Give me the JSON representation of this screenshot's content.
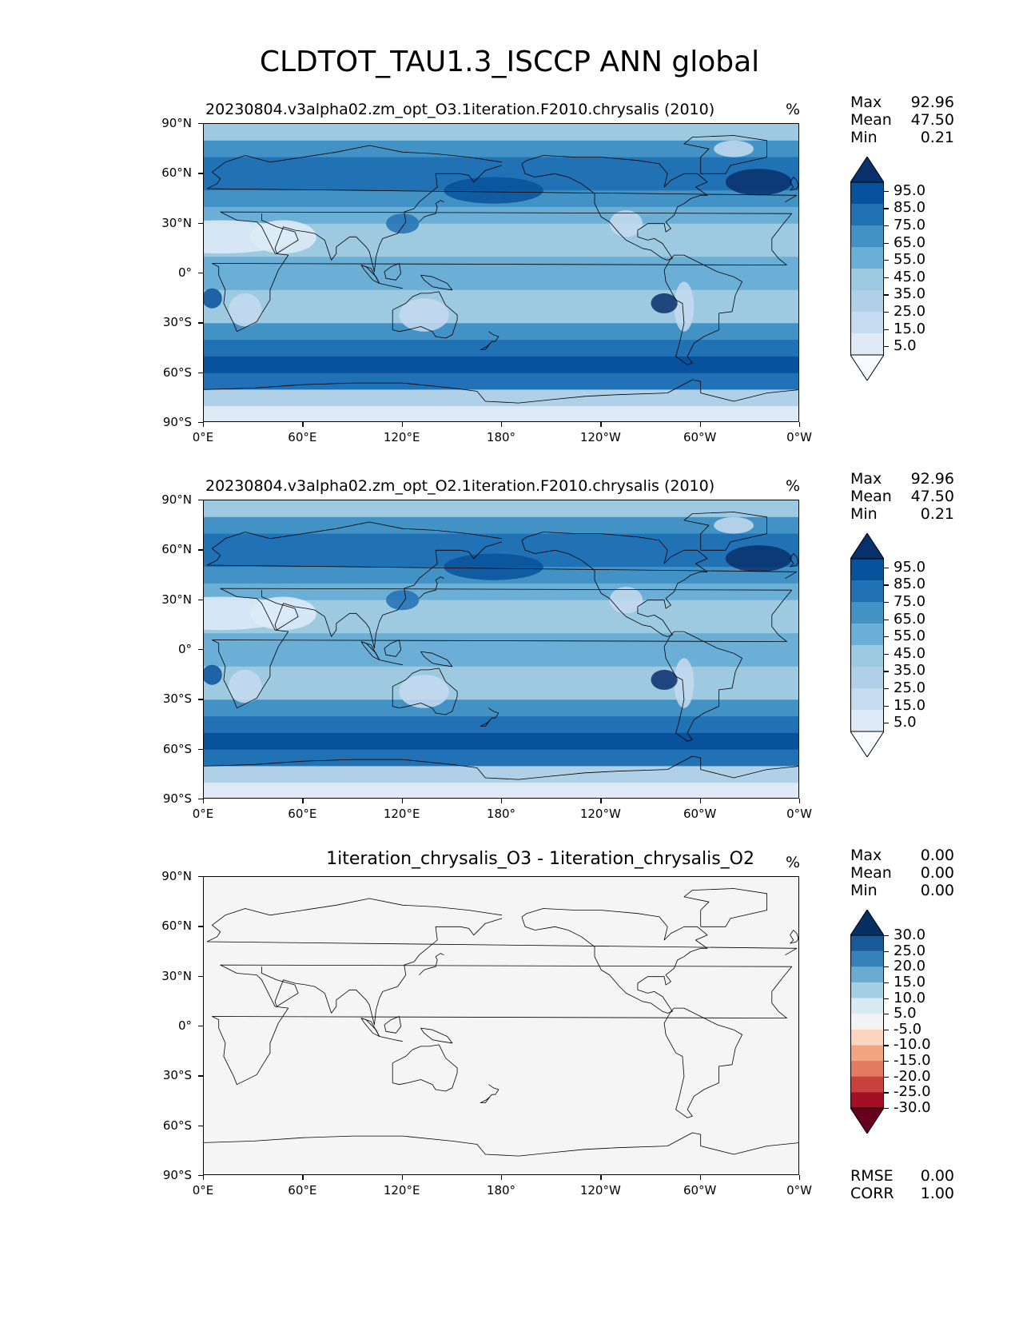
{
  "figure_title": "CLDTOT_TAU1.3_ISCCP ANN global",
  "units": "%",
  "axes": {
    "y_ticks": [
      "90°N",
      "60°N",
      "30°N",
      "0°",
      "30°S",
      "60°S",
      "90°S"
    ],
    "x_ticks": [
      "0°E",
      "60°E",
      "120°E",
      "180°",
      "120°W",
      "60°W",
      "0°W"
    ]
  },
  "panels": [
    {
      "title": "20230804.v3alpha02.zm_opt_O3.1iteration.F2010.chrysalis (2010)",
      "unit": "%",
      "stats": {
        "max_label": "Max",
        "max": "92.96",
        "mean_label": "Mean",
        "mean": "47.50",
        "min_label": "Min",
        "min": "0.21"
      },
      "colorbar": {
        "labels": [
          "95.0",
          "85.0",
          "75.0",
          "65.0",
          "55.0",
          "45.0",
          "35.0",
          "25.0",
          "15.0",
          "5.0"
        ]
      }
    },
    {
      "title": "20230804.v3alpha02.zm_opt_O2.1iteration.F2010.chrysalis (2010)",
      "unit": "%",
      "stats": {
        "max_label": "Max",
        "max": "92.96",
        "mean_label": "Mean",
        "mean": "47.50",
        "min_label": "Min",
        "min": "0.21"
      },
      "colorbar": {
        "labels": [
          "95.0",
          "85.0",
          "75.0",
          "65.0",
          "55.0",
          "45.0",
          "35.0",
          "25.0",
          "15.0",
          "5.0"
        ]
      }
    },
    {
      "title": "1iteration_chrysalis_O3 - 1iteration_chrysalis_O2",
      "unit": "%",
      "stats": {
        "max_label": "Max",
        "max": "0.00",
        "mean_label": "Mean",
        "mean": "0.00",
        "min_label": "Min",
        "min": "0.00"
      },
      "colorbar": {
        "labels": [
          "30.0",
          "25.0",
          "20.0",
          "15.0",
          "10.0",
          "5.0",
          "-5.0",
          "-10.0",
          "-15.0",
          "-20.0",
          "-25.0",
          "-30.0"
        ]
      },
      "metrics": {
        "rmse_label": "RMSE",
        "rmse": "0.00",
        "corr_label": "CORR",
        "corr": "1.00"
      }
    }
  ],
  "chart_data": [
    {
      "type": "heatmap",
      "title": "20230804.v3alpha02.zm_opt_O3.1iteration.F2010.chrysalis (2010)",
      "variable": "CLDTOT_TAU1.3_ISCCP",
      "units": "%",
      "xlim": [
        0,
        360
      ],
      "ylim": [
        -90,
        90
      ],
      "levels": [
        0,
        5,
        15,
        25,
        35,
        45,
        55,
        65,
        75,
        85,
        95,
        100
      ],
      "zonal_profile_lat": [
        90,
        80,
        70,
        60,
        50,
        40,
        30,
        20,
        10,
        0,
        -10,
        -20,
        -30,
        -40,
        -50,
        -60,
        -70,
        -80,
        -90
      ],
      "zonal_profile_value": [
        20,
        55,
        72,
        70,
        66,
        55,
        35,
        38,
        45,
        48,
        45,
        38,
        45,
        65,
        80,
        82,
        55,
        8,
        5
      ],
      "stats": {
        "max": 92.96,
        "mean": 47.5,
        "min": 0.21
      }
    },
    {
      "type": "heatmap",
      "title": "20230804.v3alpha02.zm_opt_O2.1iteration.F2010.chrysalis (2010)",
      "variable": "CLDTOT_TAU1.3_ISCCP",
      "units": "%",
      "xlim": [
        0,
        360
      ],
      "ylim": [
        -90,
        90
      ],
      "levels": [
        0,
        5,
        15,
        25,
        35,
        45,
        55,
        65,
        75,
        85,
        95,
        100
      ],
      "zonal_profile_lat": [
        90,
        80,
        70,
        60,
        50,
        40,
        30,
        20,
        10,
        0,
        -10,
        -20,
        -30,
        -40,
        -50,
        -60,
        -70,
        -80,
        -90
      ],
      "zonal_profile_value": [
        20,
        55,
        72,
        70,
        66,
        55,
        35,
        38,
        45,
        48,
        45,
        38,
        45,
        65,
        80,
        82,
        55,
        8,
        5
      ],
      "stats": {
        "max": 92.96,
        "mean": 47.5,
        "min": 0.21
      }
    },
    {
      "type": "heatmap",
      "title": "1iteration_chrysalis_O3 - 1iteration_chrysalis_O2",
      "units": "%",
      "xlim": [
        0,
        360
      ],
      "ylim": [
        -90,
        90
      ],
      "levels": [
        -35,
        -30,
        -25,
        -20,
        -15,
        -10,
        -5,
        5,
        10,
        15,
        20,
        25,
        30,
        35
      ],
      "field": "uniform zero difference",
      "stats": {
        "max": 0.0,
        "mean": 0.0,
        "min": 0.0,
        "rmse": 0.0,
        "corr": 1.0
      }
    }
  ],
  "colors": {
    "blues": [
      "#f7fbff",
      "#deebf7",
      "#c6dbef",
      "#b0d0e8",
      "#9ecae1",
      "#6baed6",
      "#4292c6",
      "#2171b5",
      "#08519c",
      "#08306b"
    ],
    "diverging": [
      "#67001f",
      "#a50f25",
      "#c9413d",
      "#e37b61",
      "#f3a582",
      "#fbd5c0",
      "#f4f4f4",
      "#d7e9f3",
      "#a6cfe4",
      "#6aabd1",
      "#3682bb",
      "#195999",
      "#053061"
    ],
    "diff_fill": "#f5f5f5"
  }
}
